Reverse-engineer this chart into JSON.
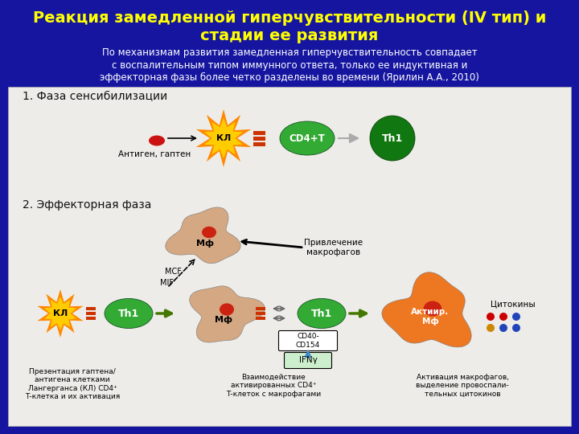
{
  "bg_color": "#1515a0",
  "content_bg": "#eeece8",
  "title_line1": "Реакция замедленной гиперчувствительности (IV тип) и",
  "title_line2": "стадии ее развития",
  "title_color": "#ffff00",
  "title_fontsize": 14,
  "subtitle_lines": [
    "По механизмам развития замедленная гиперчувствительность совпадает",
    "с воспалительным типом иммунного ответа, только ее индуктивная и",
    "эффекторная фазы более четко разделены во времени (Ярилин А.А., 2010)"
  ],
  "subtitle_color": "#ffffff",
  "subtitle_fontsize": 8.5,
  "phase1_label": "1. Фаза сенсибилизации",
  "phase2_label": "2. Эффекторная фаза",
  "phase_fontsize": 10,
  "phase_color": "#111111",
  "orange_burst1": "#ff8800",
  "orange_burst2": "#ffcc00",
  "green_cell": "#33aa33",
  "dark_green_cell": "#117711",
  "peach_cell": "#d4a882",
  "orange_cell": "#ee7722",
  "red_nucleus": "#cc2211",
  "receptor_color": "#cc3300",
  "black": "#000000",
  "white": "#ffffff",
  "arrow_gray": "#999999",
  "arrow_green": "#447700",
  "dot_red": "#cc0000",
  "dot_blue": "#2244bb",
  "dot_orange": "#cc8800",
  "ifng_box_color": "#cceecc",
  "cd40_box_color": "#ffffff"
}
